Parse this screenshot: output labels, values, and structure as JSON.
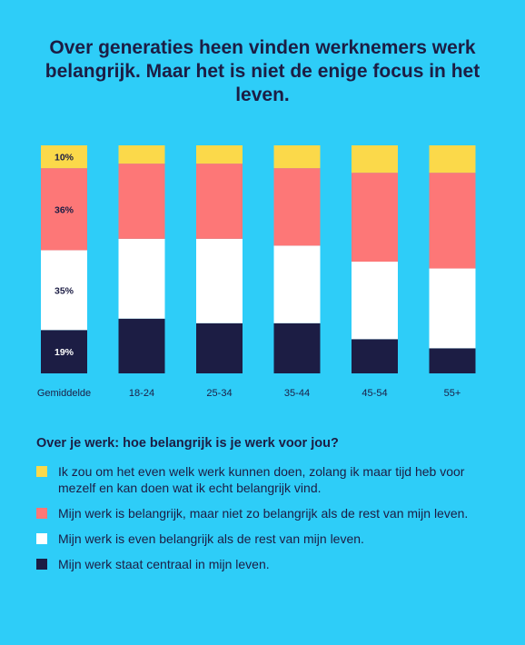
{
  "title": "Over generaties heen vinden werknemers werk belangrijk. Maar het is niet de enige focus in het leven.",
  "legend_title": "Over je werk: hoe belangrijk is je werk voor jou?",
  "legend": [
    {
      "color": "#fbd94a",
      "text": "Ik zou om het even welk werk kunnen doen, zolang ik maar tijd heb voor mezelf en kan doen wat ik echt belangrijk vind."
    },
    {
      "color": "#fd7777",
      "text": "Mijn werk is belangrijk, maar niet zo belangrijk als de rest van mijn leven."
    },
    {
      "color": "#ffffff",
      "text": "Mijn werk is even belangrijk als de rest van mijn leven."
    },
    {
      "color": "#1c1d44",
      "text": "Mijn werk staat centraal in mijn leven."
    }
  ],
  "chart_data": {
    "type": "bar",
    "stacked": true,
    "percent_stacked": true,
    "categories": [
      "Gemiddelde",
      "18-24",
      "25-34",
      "35-44",
      "45-54",
      "55+"
    ],
    "series": [
      {
        "name": "Mijn werk staat centraal in mijn leven.",
        "color": "#1c1d44",
        "values": [
          19,
          24,
          22,
          22,
          15,
          11
        ]
      },
      {
        "name": "Mijn werk is even belangrijk als de rest van mijn leven.",
        "color": "#ffffff",
        "values": [
          35,
          35,
          37,
          34,
          34,
          35
        ]
      },
      {
        "name": "Mijn werk is belangrijk, maar niet zo belangrijk als de rest van mijn leven.",
        "color": "#fd7777",
        "values": [
          36,
          33,
          33,
          34,
          39,
          42
        ]
      },
      {
        "name": "Ik zou om het even welk werk kunnen doen, zolang ik maar tijd heb voor mezelf en kan doen wat ik echt belangrijk vind.",
        "color": "#fbd94a",
        "values": [
          10,
          8,
          8,
          10,
          12,
          12
        ]
      }
    ],
    "data_labels": {
      "category": "Gemiddelde",
      "labels": [
        "19%",
        "35%",
        "36%",
        "10%"
      ]
    },
    "ylim": [
      0,
      100
    ],
    "grid": false,
    "legend_position": "bottom"
  }
}
